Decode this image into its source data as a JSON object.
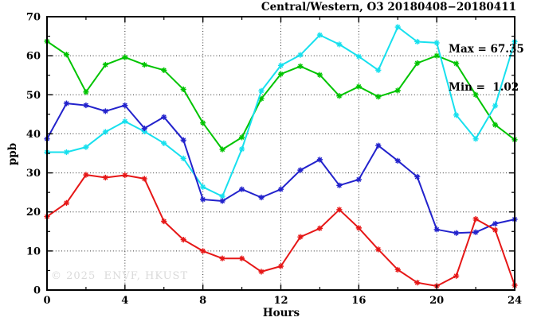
{
  "title": "Central/Western, O3 20180408−20180411",
  "annotation": {
    "max_label": "Max = 67.35",
    "min_label": "Min =  1.02"
  },
  "watermark": "© 2025  ENVF, HKUST",
  "chart_data": {
    "type": "line",
    "title": "Central/Western, O3 20180408-20180411",
    "xlabel": "Hours",
    "ylabel": "ppb",
    "xlim": [
      0,
      24
    ],
    "ylim": [
      0,
      70
    ],
    "x_major_ticks": [
      0,
      4,
      8,
      12,
      16,
      20,
      24
    ],
    "x_minor_ticks": [
      2,
      6,
      10,
      14,
      18,
      22
    ],
    "y_major_ticks": [
      0,
      10,
      20,
      30,
      40,
      50,
      60,
      70
    ],
    "y_minor_ticks": [
      5,
      15,
      25,
      35,
      45,
      55,
      65
    ],
    "grid": true,
    "legend": "none",
    "max_value": 67.35,
    "min_value": 1.02,
    "x": [
      0,
      1,
      2,
      3,
      4,
      5,
      6,
      7,
      8,
      9,
      10,
      11,
      12,
      13,
      14,
      15,
      16,
      17,
      18,
      19,
      20,
      21,
      22,
      23,
      24
    ],
    "series": [
      {
        "name": "green-series",
        "color": "#00c400",
        "values": [
          63.7,
          60.3,
          50.7,
          57.7,
          59.6,
          57.7,
          56.3,
          51.4,
          42.8,
          36.0,
          39.1,
          49.0,
          55.3,
          57.3,
          55.1,
          49.7,
          52.1,
          49.5,
          51.1,
          58.1,
          60.0,
          58.0,
          50.0,
          42.3,
          38.5
        ]
      },
      {
        "name": "cyan-series",
        "color": "#17e0ee",
        "values": [
          35.3,
          35.3,
          36.6,
          40.5,
          43.2,
          40.6,
          37.6,
          33.7,
          26.4,
          24.0,
          36.1,
          51.0,
          57.5,
          60.2,
          65.3,
          62.9,
          59.8,
          56.3,
          67.35,
          63.6,
          63.3,
          44.8,
          38.7,
          47.2,
          63.6
        ]
      },
      {
        "name": "blue-series",
        "color": "#2222cc",
        "values": [
          38.7,
          47.8,
          47.3,
          45.8,
          47.3,
          41.4,
          44.3,
          38.4,
          23.2,
          22.8,
          25.8,
          23.7,
          25.8,
          30.7,
          33.4,
          26.8,
          28.3,
          37.0,
          33.1,
          29.0,
          15.5,
          14.6,
          14.8,
          17.0,
          18.1
        ]
      },
      {
        "name": "red-series",
        "color": "#e61717",
        "values": [
          18.8,
          22.3,
          29.5,
          28.8,
          29.4,
          28.5,
          17.6,
          12.9,
          10.0,
          8.1,
          8.1,
          4.7,
          6.1,
          13.6,
          15.8,
          20.6,
          15.9,
          10.4,
          5.2,
          1.9,
          1.02,
          3.6,
          18.2,
          15.4,
          1.2
        ]
      }
    ]
  }
}
